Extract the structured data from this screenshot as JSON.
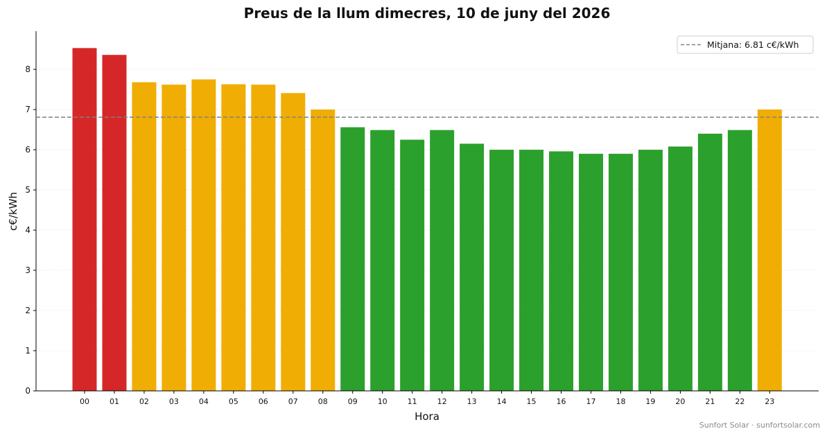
{
  "chart_data": {
    "type": "bar",
    "title": "Preus de la llum dimecres, 10 de juny del 2026",
    "xlabel": "Hora",
    "ylabel": "c€/kWh",
    "categories": [
      "00",
      "01",
      "02",
      "03",
      "04",
      "05",
      "06",
      "07",
      "08",
      "09",
      "10",
      "11",
      "12",
      "13",
      "14",
      "15",
      "16",
      "17",
      "18",
      "19",
      "20",
      "21",
      "22",
      "23"
    ],
    "values": [
      8.53,
      8.36,
      7.68,
      7.62,
      7.75,
      7.63,
      7.62,
      7.41,
      7.0,
      6.56,
      6.49,
      6.25,
      6.49,
      6.15,
      6.0,
      6.0,
      5.96,
      5.9,
      5.9,
      6.0,
      6.08,
      6.4,
      6.49,
      7.0
    ],
    "price_levels": [
      "high",
      "high",
      "mid",
      "mid",
      "mid",
      "mid",
      "mid",
      "mid",
      "mid",
      "low",
      "low",
      "low",
      "low",
      "low",
      "low",
      "low",
      "low",
      "low",
      "low",
      "low",
      "low",
      "low",
      "low",
      "mid"
    ],
    "ylim": [
      0,
      8.95
    ],
    "yticks": [
      0,
      1,
      2,
      3,
      4,
      5,
      6,
      7,
      8
    ],
    "grid": "horizontal dotted",
    "legend_position": "top-right",
    "average": {
      "value": 6.81,
      "label": "Mitjana: 6.81 c€/kWh"
    },
    "colors": {
      "high": "#d62728",
      "mid": "#f0ad04",
      "low": "#2ca02c",
      "average_line": "#808080"
    }
  },
  "credit": "Sunfort Solar · sunfortsolar.com"
}
